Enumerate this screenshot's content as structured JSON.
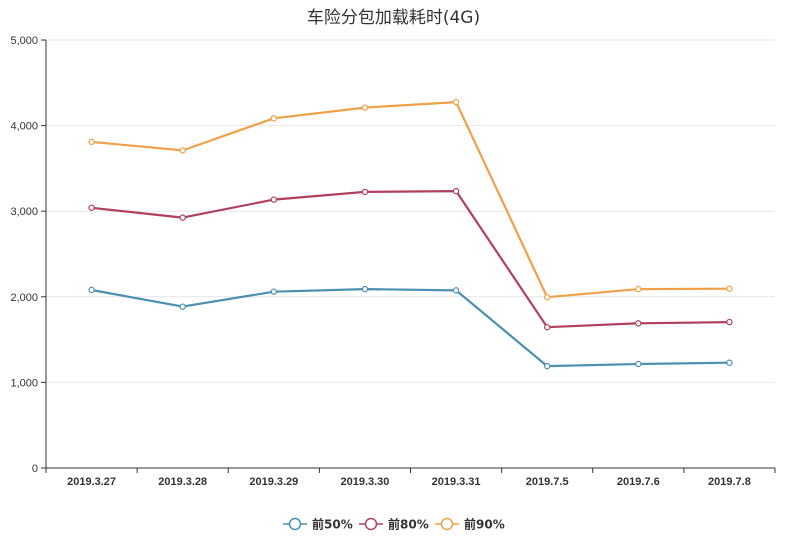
{
  "chart_data": {
    "type": "line",
    "title": "车险分包加载耗时(4G)",
    "xlabel": "",
    "ylabel": "",
    "categories": [
      "2019.3.27",
      "2019.3.28",
      "2019.3.29",
      "2019.3.30",
      "2019.3.31",
      "2019.7.5",
      "2019.7.6",
      "2019.7.8"
    ],
    "ylim": [
      0,
      5000
    ],
    "yticks": [
      0,
      1000,
      2000,
      3000,
      4000,
      5000
    ],
    "ytick_labels": [
      "0",
      "1,000",
      "2,000",
      "3,000",
      "4,000",
      "5,000"
    ],
    "grid": true,
    "legend_position": "bottom-center",
    "series": [
      {
        "name": "前50%",
        "color": "#4a90b0",
        "values": [
          2080,
          1885,
          2060,
          2090,
          2075,
          1190,
          1215,
          1230
        ]
      },
      {
        "name": "前80%",
        "color": "#b0405e",
        "values": [
          3040,
          2925,
          3135,
          3225,
          3235,
          1645,
          1690,
          1705
        ]
      },
      {
        "name": "前90%",
        "color": "#f0a048",
        "values": [
          3810,
          3710,
          4085,
          4210,
          4275,
          1995,
          2090,
          2095
        ]
      }
    ]
  }
}
